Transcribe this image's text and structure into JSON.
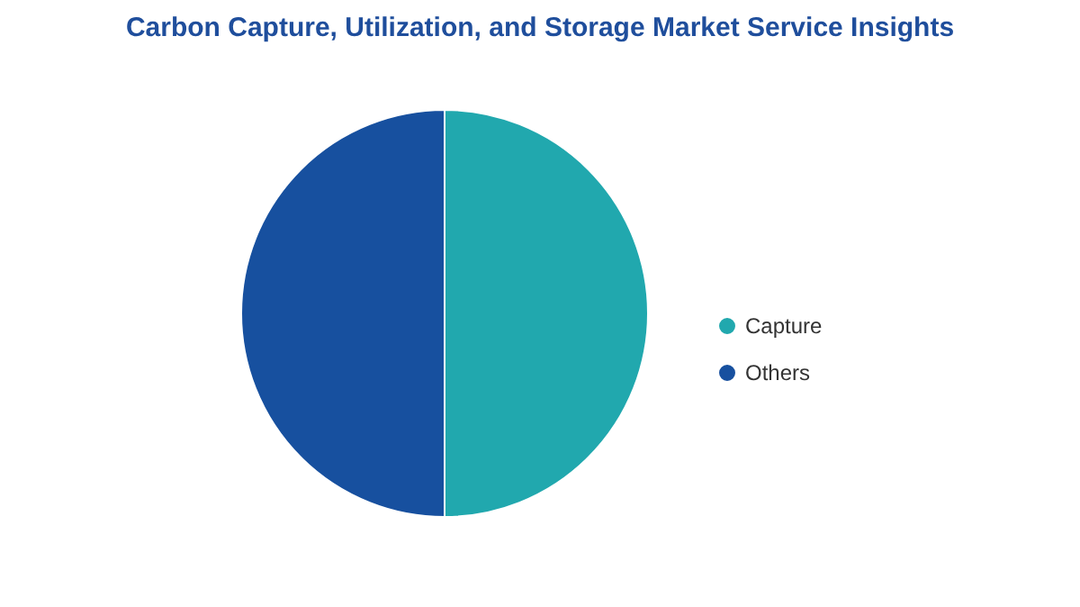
{
  "chart_data": {
    "type": "pie",
    "title": "Carbon Capture, Utilization, and Storage Market Service Insights",
    "categories": [
      "Capture",
      "Others"
    ],
    "values": [
      50,
      50
    ],
    "colors": [
      "#21a8ae",
      "#17509f"
    ],
    "legend": "right"
  }
}
